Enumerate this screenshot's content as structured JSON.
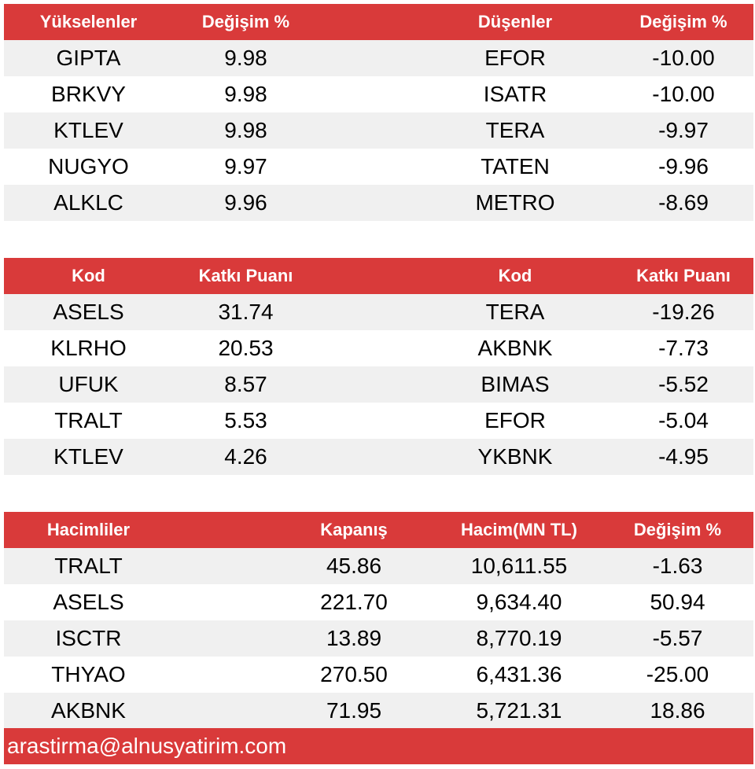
{
  "gainers_losers": {
    "headers": [
      "Yükselenler",
      "Değişim %",
      "Düşenler",
      "Değişim %"
    ],
    "rows": [
      [
        "GIPTA",
        "9.98",
        "EFOR",
        "-10.00"
      ],
      [
        "BRKVY",
        "9.98",
        "ISATR",
        "-10.00"
      ],
      [
        "KTLEV",
        "9.98",
        "TERA",
        "-9.97"
      ],
      [
        "NUGYO",
        "9.97",
        "TATEN",
        "-9.96"
      ],
      [
        "ALKLC",
        "9.96",
        "METRO",
        "-8.69"
      ]
    ]
  },
  "contribution": {
    "headers": [
      "Kod",
      "Katkı Puanı",
      "Kod",
      "Katkı Puanı"
    ],
    "rows": [
      [
        "ASELS",
        "31.74",
        "TERA",
        "-19.26"
      ],
      [
        "KLRHO",
        "20.53",
        "AKBNK",
        "-7.73"
      ],
      [
        "UFUK",
        "8.57",
        "BIMAS",
        "-5.52"
      ],
      [
        "TRALT",
        "5.53",
        "EFOR",
        "-5.04"
      ],
      [
        "KTLEV",
        "4.26",
        "YKBNK",
        "-4.95"
      ]
    ]
  },
  "volume": {
    "headers": [
      "Hacimliler",
      "Kapanış",
      "Hacim(MN TL)",
      "Değişim %"
    ],
    "rows": [
      [
        "TRALT",
        "45.86",
        "10,611.55",
        "-1.63"
      ],
      [
        "ASELS",
        "221.70",
        "9,634.40",
        "50.94"
      ],
      [
        "ISCTR",
        "13.89",
        "8,770.19",
        "-5.57"
      ],
      [
        "THYAO",
        "270.50",
        "6,431.36",
        "-25.00"
      ],
      [
        "AKBNK",
        "71.95",
        "5,721.31",
        "18.86"
      ]
    ]
  },
  "footer": {
    "email": "arastirma@alnusyatirim.com"
  },
  "colors": {
    "header_bg": "#d93a3a",
    "alt_row_bg": "#f0f0f0"
  }
}
